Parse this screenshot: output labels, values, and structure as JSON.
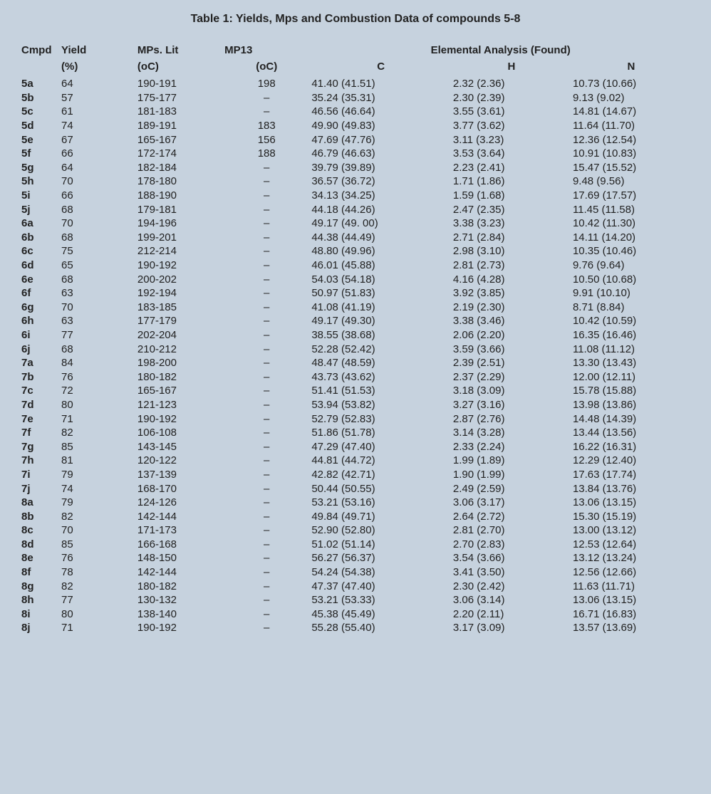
{
  "caption": "Table 1: Yields, Mps and Combustion Data of compounds 5-8",
  "head": {
    "cmpd": "Cmpd",
    "yield": "Yield",
    "mplit": "MPs. Lit",
    "mp13": "MP13",
    "elem": "Elemental Analysis (Found)",
    "yield_unit": "(%)",
    "mplit_unit": "(oC)",
    "mp13_unit": "(oC)",
    "c": "C",
    "h": "H",
    "n": "N"
  },
  "rows": [
    {
      "cmpd": "5a",
      "yield": "64",
      "mplit": "190-191",
      "mp13": "198",
      "c": "41.40 (41.51)",
      "h": "2.32 (2.36)",
      "n": "10.73 (10.66)"
    },
    {
      "cmpd": "5b",
      "yield": "57",
      "mplit": "175-177",
      "mp13": "–",
      "c": "35.24 (35.31)",
      "h": "2.30 (2.39)",
      "n": "9.13 (9.02)"
    },
    {
      "cmpd": "5c",
      "yield": "61",
      "mplit": "181-183",
      "mp13": "–",
      "c": "46.56 (46.64)",
      "h": "3.55 (3.61)",
      "n": "14.81 (14.67)"
    },
    {
      "cmpd": "5d",
      "yield": "74",
      "mplit": "189-191",
      "mp13": "183",
      "c": "49.90 (49.83)",
      "h": "3.77 (3.62)",
      "n": "11.64 (11.70)"
    },
    {
      "cmpd": "5e",
      "yield": "67",
      "mplit": "165-167",
      "mp13": "156",
      "c": "47.69 (47.76)",
      "h": "3.11 (3.23)",
      "n": "12.36 (12.54)"
    },
    {
      "cmpd": "5f",
      "yield": "66",
      "mplit": "172-174",
      "mp13": "188",
      "c": "46.79 (46.63)",
      "h": "3.53 (3.64)",
      "n": "10.91 (10.83)"
    },
    {
      "cmpd": "5g",
      "yield": "64",
      "mplit": "182-184",
      "mp13": "–",
      "c": "39.79 (39.89)",
      "h": "2.23 (2.41)",
      "n": "15.47 (15.52)"
    },
    {
      "cmpd": "5h",
      "yield": "70",
      "mplit": "178-180",
      "mp13": "–",
      "c": "36.57 (36.72)",
      "h": "1.71 (1.86)",
      "n": "9.48 (9.56)"
    },
    {
      "cmpd": "5i",
      "yield": "66",
      "mplit": "188-190",
      "mp13": "–",
      "c": "34.13 (34.25)",
      "h": "1.59 (1.68)",
      "n": "17.69 (17.57)"
    },
    {
      "cmpd": "5j",
      "yield": "68",
      "mplit": "179-181",
      "mp13": "–",
      "c": "44.18 (44.26)",
      "h": "2.47 (2.35)",
      "n": "11.45 (11.58)"
    },
    {
      "cmpd": "6a",
      "yield": "70",
      "mplit": "194-196",
      "mp13": "–",
      "c": "49.17 (49. 00)",
      "h": "3.38 (3.23)",
      "n": "10.42 (11.30)"
    },
    {
      "cmpd": "6b",
      "yield": "68",
      "mplit": "199-201",
      "mp13": "–",
      "c": "44.38 (44.49)",
      "h": "2.71 (2.84)",
      "n": "14.11 (14.20)"
    },
    {
      "cmpd": "6c",
      "yield": "75",
      "mplit": "212-214",
      "mp13": "–",
      "c": "48.80 (49.96)",
      "h": "2.98 (3.10)",
      "n": "10.35 (10.46)"
    },
    {
      "cmpd": "6d",
      "yield": "65",
      "mplit": "190-192",
      "mp13": "–",
      "c": "46.01 (45.88)",
      "h": "2.81 (2.73)",
      "n": "9.76 (9.64)"
    },
    {
      "cmpd": "6e",
      "yield": "68",
      "mplit": "200-202",
      "mp13": "–",
      "c": "54.03 (54.18)",
      "h": "4.16 (4.28)",
      "n": "10.50 (10.68)"
    },
    {
      "cmpd": "6f",
      "yield": "63",
      "mplit": "192-194",
      "mp13": "–",
      "c": "50.97 (51.83)",
      "h": "3.92 (3.85)",
      "n": "9.91 (10.10)"
    },
    {
      "cmpd": "6g",
      "yield": "70",
      "mplit": "183-185",
      "mp13": "–",
      "c": "41.08 (41.19)",
      "h": "2.19 (2.30)",
      "n": "8.71 (8.84)"
    },
    {
      "cmpd": "6h",
      "yield": "63",
      "mplit": "177-179",
      "mp13": "–",
      "c": "49.17 (49.30)",
      "h": "3.38 (3.46)",
      "n": "10.42 (10.59)"
    },
    {
      "cmpd": "6i",
      "yield": "77",
      "mplit": "202-204",
      "mp13": "–",
      "c": "38.55 (38.68)",
      "h": "2.06 (2.20)",
      "n": "16.35 (16.46)"
    },
    {
      "cmpd": "6j",
      "yield": "68",
      "mplit": "210-212",
      "mp13": "–",
      "c": "52.28 (52.42)",
      "h": "3.59 (3.66)",
      "n": "11.08 (11.12)"
    },
    {
      "cmpd": "7a",
      "yield": "84",
      "mplit": "198-200",
      "mp13": "–",
      "c": "48.47 (48.59)",
      "h": "2.39 (2.51)",
      "n": "13.30 (13.43)"
    },
    {
      "cmpd": "7b",
      "yield": "76",
      "mplit": "180-182",
      "mp13": "–",
      "c": "43.73 (43.62)",
      "h": "2.37 (2.29)",
      "n": "12.00 (12.11)"
    },
    {
      "cmpd": "7c",
      "yield": "72",
      "mplit": "165-167",
      "mp13": "–",
      "c": "51.41 (51.53)",
      "h": "3.18 (3.09)",
      "n": "15.78 (15.88)"
    },
    {
      "cmpd": "7d",
      "yield": "80",
      "mplit": "121-123",
      "mp13": "–",
      "c": "53.94 (53.82)",
      "h": "3.27 (3.16)",
      "n": "13.98 (13.86)"
    },
    {
      "cmpd": "7e",
      "yield": "71",
      "mplit": "190-192",
      "mp13": "–",
      "c": "52.79 (52.83)",
      "h": "2.87 (2.76)",
      "n": "14.48 (14.39)"
    },
    {
      "cmpd": "7f",
      "yield": "82",
      "mplit": "106-108",
      "mp13": "–",
      "c": "51.86 (51.78)",
      "h": "3.14 (3.28)",
      "n": "13.44 (13.56)"
    },
    {
      "cmpd": "7g",
      "yield": "85",
      "mplit": "143-145",
      "mp13": "–",
      "c": "47.29 (47.40)",
      "h": "2.33 (2.24)",
      "n": "16.22 (16.31)"
    },
    {
      "cmpd": "7h",
      "yield": "81",
      "mplit": "120-122",
      "mp13": "–",
      "c": "44.81 (44.72)",
      "h": "1.99 (1.89)",
      "n": "12.29 (12.40)"
    },
    {
      "cmpd": "7i",
      "yield": "79",
      "mplit": "137-139",
      "mp13": "–",
      "c": "42.82 (42.71)",
      "h": "1.90 (1.99)",
      "n": "17.63 (17.74)"
    },
    {
      "cmpd": "7j",
      "yield": "74",
      "mplit": "168-170",
      "mp13": "–",
      "c": "50.44 (50.55)",
      "h": "2.49 (2.59)",
      "n": "13.84 (13.76)"
    },
    {
      "cmpd": "8a",
      "yield": "79",
      "mplit": "124-126",
      "mp13": "–",
      "c": "53.21 (53.16)",
      "h": "3.06 (3.17)",
      "n": "13.06 (13.15)"
    },
    {
      "cmpd": "8b",
      "yield": "82",
      "mplit": "142-144",
      "mp13": "–",
      "c": "49.84 (49.71)",
      "h": "2.64 (2.72)",
      "n": "15.30 (15.19)"
    },
    {
      "cmpd": "8c",
      "yield": "70",
      "mplit": "171-173",
      "mp13": "–",
      "c": "52.90 (52.80)",
      "h": "2.81 (2.70)",
      "n": "13.00 (13.12)"
    },
    {
      "cmpd": "8d",
      "yield": "85",
      "mplit": "166-168",
      "mp13": "–",
      "c": "51.02 (51.14)",
      "h": "2.70 (2.83)",
      "n": "12.53 (12.64)"
    },
    {
      "cmpd": "8e",
      "yield": "76",
      "mplit": "148-150",
      "mp13": "–",
      "c": "56.27 (56.37)",
      "h": "3.54 (3.66)",
      "n": "13.12 (13.24)"
    },
    {
      "cmpd": "8f",
      "yield": "78",
      "mplit": "142-144",
      "mp13": "–",
      "c": "54.24 (54.38)",
      "h": "3.41 (3.50)",
      "n": "12.56 (12.66)"
    },
    {
      "cmpd": "8g",
      "yield": "82",
      "mplit": "180-182",
      "mp13": "–",
      "c": "47.37 (47.40)",
      "h": "2.30 (2.42)",
      "n": "11.63 (11.71)"
    },
    {
      "cmpd": "8h",
      "yield": "77",
      "mplit": "130-132",
      "mp13": "–",
      "c": "53.21 (53.33)",
      "h": "3.06 (3.14)",
      "n": "13.06 (13.15)"
    },
    {
      "cmpd": "8i",
      "yield": "80",
      "mplit": "138-140",
      "mp13": "–",
      "c": "45.38 (45.49)",
      "h": "2.20 (2.11)",
      "n": "16.71 (16.83)"
    },
    {
      "cmpd": "8j",
      "yield": "71",
      "mplit": "190-192",
      "mp13": "–",
      "c": "55.28 (55.40)",
      "h": "3.17 (3.09)",
      "n": "13.57 (13.69)"
    }
  ]
}
